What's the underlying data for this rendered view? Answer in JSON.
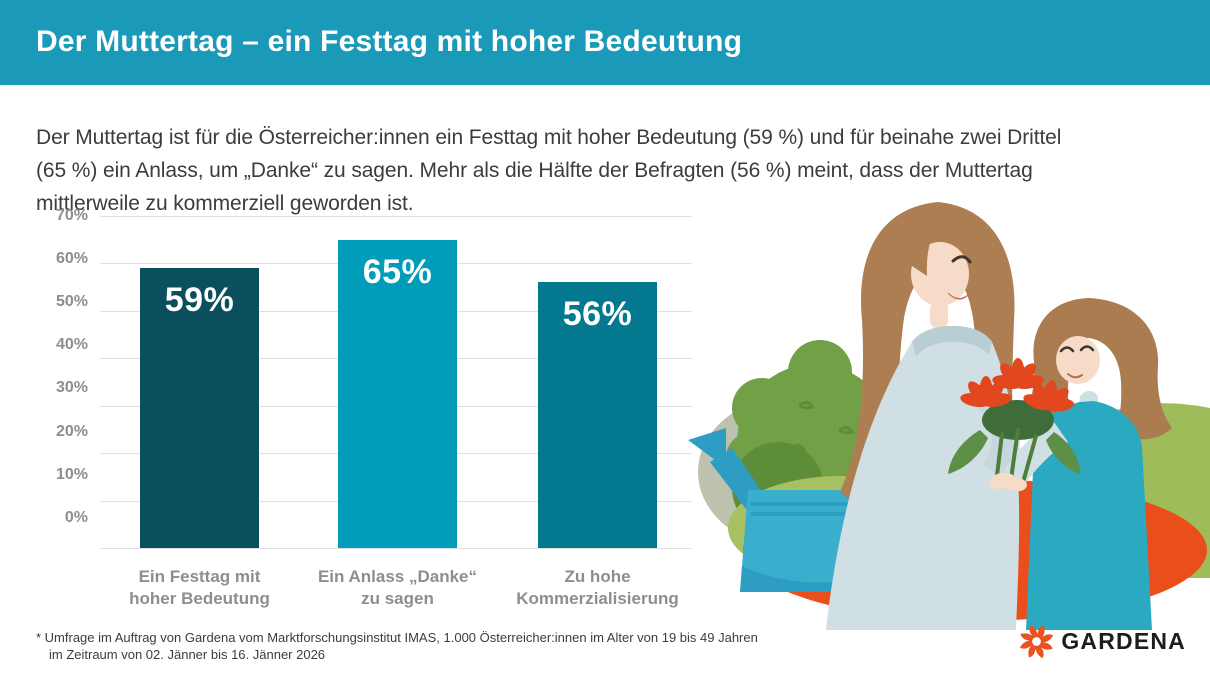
{
  "colors": {
    "banner": "#1A9AB8",
    "accent_orange": "#E94E1B",
    "logo_orange": "#E8531F",
    "grid": "#E0E0E0",
    "axis_text": "#8E8E8E",
    "body_text": "#3C3C3B"
  },
  "header": {
    "title": "Der Muttertag – ein Festtag mit hoher Bedeutung"
  },
  "intro": {
    "text": "Der Muttertag ist für die Österreicher:innen ein Festtag mit hoher Bedeutung (59 %) und für beinahe zwei Drittel\n(65 %) ein Anlass, um „Danke“ zu sagen. Mehr als die Hälfte der Befragten (56 %) meint, dass der Muttertag\nmittlerweile zu kommerziell geworden ist."
  },
  "chart_data": {
    "type": "bar",
    "categories": [
      "Ein Festtag mit\nhoher Bedeutung",
      "Ein Anlass „Danke“\nzu sagen",
      "Zu hohe\nKommerzialisierung"
    ],
    "values": [
      59,
      65,
      56
    ],
    "value_labels": [
      "59%",
      "65%",
      "56%"
    ],
    "bar_colors": [
      "#0B4F5E",
      "#009CBA",
      "#04788E"
    ],
    "yticks": [
      "70%",
      "60%",
      "50%",
      "40%",
      "30%",
      "20%",
      "10%",
      "0%"
    ],
    "ylim": [
      0,
      70
    ],
    "grid": true,
    "title": "",
    "xlabel": "",
    "ylabel": ""
  },
  "illustration": {
    "icon": "mother-daughter-flowers-illustration"
  },
  "footnote": {
    "line1": "* Umfrage im Auftrag von Gardena vom Marktforschungsinstitut IMAS, 1.000 Österreicher:innen im Alter von 19 bis 49 Jahren",
    "line2": "im Zeitraum von 02. Jänner bis 16. Jänner 2026"
  },
  "logo": {
    "text": "GARDENA"
  }
}
